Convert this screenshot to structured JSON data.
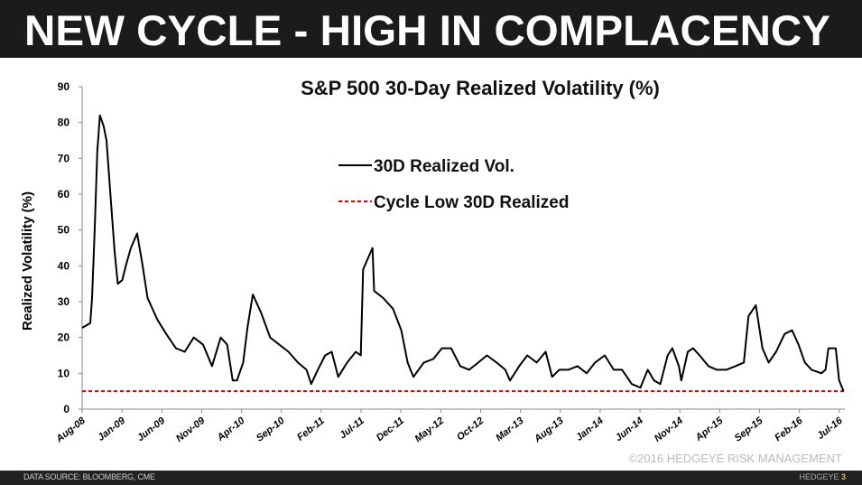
{
  "header": {
    "title": "NEW CYCLE - HIGH IN COMPLACENCY"
  },
  "footer": {
    "source": "DATA SOURCE: BLOOMBERG, CME",
    "copyright": "©2016  HEDGEYE RISK MANAGEMENT",
    "brand": "HEDGEYE",
    "page": "3"
  },
  "colors": {
    "header_bg": "#1b1b1b",
    "series": "#000000",
    "cycle_low": "#e00000"
  },
  "chart_data": {
    "type": "line",
    "title": "S&P 500 30-Day Realized Volatility (%)",
    "xlabel": "",
    "ylabel": "Realized Volatility (%)",
    "ylim": [
      0,
      90
    ],
    "yticks": [
      "0",
      "10",
      "20",
      "30",
      "40",
      "50",
      "60",
      "70",
      "80",
      "90"
    ],
    "xticks": [
      "Aug-08",
      "Jan-09",
      "Jun-09",
      "Nov-09",
      "Apr-10",
      "Sep-10",
      "Feb-11",
      "Jul-11",
      "Dec-11",
      "May-12",
      "Oct-12",
      "Mar-13",
      "Aug-13",
      "Jan-14",
      "Jun-14",
      "Nov-14",
      "Apr-15",
      "Sep-15",
      "Feb-16",
      "Jul-16"
    ],
    "grid": false,
    "legend_position": "top-center",
    "series": [
      {
        "name": "30D Realized Vol.",
        "style": "solid",
        "color": "#000000",
        "points": [
          [
            "2008-08-01",
            22.7
          ],
          [
            "2008-09-01",
            24
          ],
          [
            "2008-09-08",
            31
          ],
          [
            "2008-09-18",
            50
          ],
          [
            "2008-09-28",
            72
          ],
          [
            "2008-10-08",
            82
          ],
          [
            "2008-10-22",
            79
          ],
          [
            "2008-11-02",
            75
          ],
          [
            "2008-11-18",
            59
          ],
          [
            "2008-12-03",
            44
          ],
          [
            "2008-12-15",
            35
          ],
          [
            "2009-01-01",
            36
          ],
          [
            "2009-01-15",
            40
          ],
          [
            "2009-02-03",
            45
          ],
          [
            "2009-02-27",
            49
          ],
          [
            "2009-03-18",
            41
          ],
          [
            "2009-04-08",
            31
          ],
          [
            "2009-05-15",
            25
          ],
          [
            "2009-06-18",
            21
          ],
          [
            "2009-07-25",
            17
          ],
          [
            "2009-08-28",
            16
          ],
          [
            "2009-10-01",
            20
          ],
          [
            "2009-11-06",
            18
          ],
          [
            "2009-12-10",
            12
          ],
          [
            "2010-01-12",
            20
          ],
          [
            "2010-02-06",
            18
          ],
          [
            "2010-02-27",
            8
          ],
          [
            "2010-03-15",
            8
          ],
          [
            "2010-04-08",
            13
          ],
          [
            "2010-04-25",
            23
          ],
          [
            "2010-05-15",
            32
          ],
          [
            "2010-06-15",
            27
          ],
          [
            "2010-07-20",
            20
          ],
          [
            "2010-08-24",
            18
          ],
          [
            "2010-09-28",
            16
          ],
          [
            "2010-11-03",
            13
          ],
          [
            "2010-12-06",
            11
          ],
          [
            "2010-12-24",
            7
          ],
          [
            "2011-01-18",
            11
          ],
          [
            "2011-02-15",
            15
          ],
          [
            "2011-03-12",
            16
          ],
          [
            "2011-04-06",
            9
          ],
          [
            "2011-05-10",
            13
          ],
          [
            "2011-06-12",
            16
          ],
          [
            "2011-07-01",
            15
          ],
          [
            "2011-07-10",
            39
          ],
          [
            "2011-08-15",
            45
          ],
          [
            "2011-08-21",
            33
          ],
          [
            "2011-09-25",
            31
          ],
          [
            "2011-11-01",
            28
          ],
          [
            "2011-12-03",
            22
          ],
          [
            "2011-12-27",
            13
          ],
          [
            "2012-01-18",
            9
          ],
          [
            "2012-02-27",
            13
          ],
          [
            "2012-04-03",
            14
          ],
          [
            "2012-05-06",
            17
          ],
          [
            "2012-06-10",
            17
          ],
          [
            "2012-07-15",
            12
          ],
          [
            "2012-08-18",
            11
          ],
          [
            "2012-09-22",
            13
          ],
          [
            "2012-10-25",
            15
          ],
          [
            "2012-12-01",
            13
          ],
          [
            "2013-01-03",
            11
          ],
          [
            "2013-01-21",
            8
          ],
          [
            "2013-02-25",
            12
          ],
          [
            "2013-03-28",
            15
          ],
          [
            "2013-05-03",
            13
          ],
          [
            "2013-06-06",
            16
          ],
          [
            "2013-07-01",
            9
          ],
          [
            "2013-07-28",
            11
          ],
          [
            "2013-09-01",
            11
          ],
          [
            "2013-10-06",
            12
          ],
          [
            "2013-11-10",
            10
          ],
          [
            "2013-12-12",
            13
          ],
          [
            "2014-01-18",
            15
          ],
          [
            "2014-02-21",
            11
          ],
          [
            "2014-03-25",
            11
          ],
          [
            "2014-05-01",
            7
          ],
          [
            "2014-06-03",
            6
          ],
          [
            "2014-07-01",
            11
          ],
          [
            "2014-07-25",
            8
          ],
          [
            "2014-08-18",
            7
          ],
          [
            "2014-09-15",
            15
          ],
          [
            "2014-10-03",
            17
          ],
          [
            "2014-10-28",
            12
          ],
          [
            "2014-11-06",
            8
          ],
          [
            "2014-12-01",
            16
          ],
          [
            "2014-12-21",
            17
          ],
          [
            "2015-01-15",
            15
          ],
          [
            "2015-02-18",
            12
          ],
          [
            "2015-03-22",
            11
          ],
          [
            "2015-04-27",
            11
          ],
          [
            "2015-06-01",
            12
          ],
          [
            "2015-07-03",
            13
          ],
          [
            "2015-07-21",
            26
          ],
          [
            "2015-08-18",
            29
          ],
          [
            "2015-09-12",
            17
          ],
          [
            "2015-10-06",
            13
          ],
          [
            "2015-11-03",
            16
          ],
          [
            "2015-12-06",
            21
          ],
          [
            "2016-01-03",
            22
          ],
          [
            "2016-01-28",
            18
          ],
          [
            "2016-02-21",
            13
          ],
          [
            "2016-03-18",
            11
          ],
          [
            "2016-04-24",
            10
          ],
          [
            "2016-05-10",
            11
          ],
          [
            "2016-05-21",
            17
          ],
          [
            "2016-06-18",
            17
          ],
          [
            "2016-07-01",
            8
          ],
          [
            "2016-07-18",
            5
          ]
        ]
      },
      {
        "name": "Cycle Low 30D Realized",
        "style": "dashed",
        "color": "#e00000",
        "value": 5
      }
    ]
  }
}
